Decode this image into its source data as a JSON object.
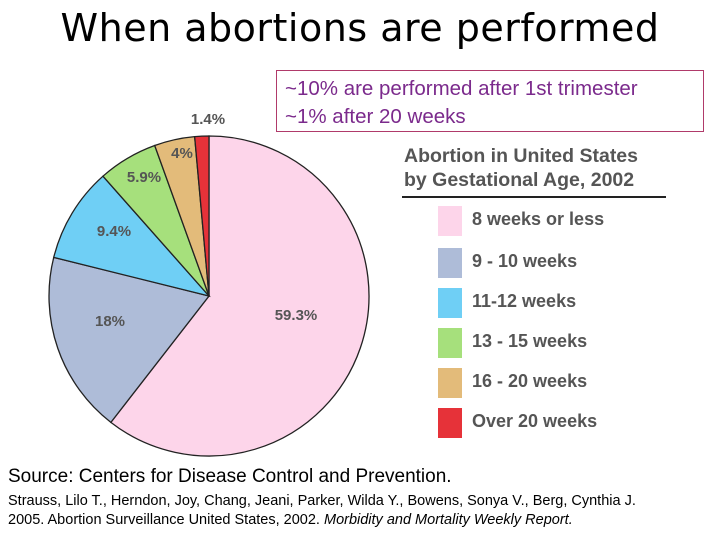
{
  "title": "When abortions are performed",
  "note": {
    "line1": "~10% are performed after 1st trimester",
    "line2": "~1% after 20 weeks"
  },
  "chart_data": {
    "type": "pie",
    "title_line1": "Abortion in United States",
    "title_line2": "by Gestational Age, 2002",
    "slices": [
      {
        "label": "8 weeks or less",
        "value": 59.3,
        "display": "59.3%",
        "color": "#fdd5ea"
      },
      {
        "label": "9 - 10 weeks",
        "value": 18,
        "display": "18%",
        "color": "#aebcd8"
      },
      {
        "label": "11-12 weeks",
        "value": 9.4,
        "display": "9.4%",
        "color": "#6fcff5"
      },
      {
        "label": "13 - 15 weeks",
        "value": 5.9,
        "display": "5.9%",
        "color": "#a6e07c"
      },
      {
        "label": "16 - 20 weeks",
        "value": 4,
        "display": "4%",
        "color": "#e3bb7a"
      },
      {
        "label": "Over 20 weeks",
        "value": 1.4,
        "display": "1.4%",
        "color": "#e63239"
      }
    ]
  },
  "source": "Source: Centers for Disease Control and Prevention.",
  "citation": {
    "line1": "Strauss, Lilo T., Herndon, Joy, Chang, Jeani, Parker, Wilda Y., Bowens, Sonya V., Berg, Cynthia J.",
    "line2_plain": "2005. Abortion Surveillance United States, 2002. ",
    "line2_italic": "Morbidity and Mortality Weekly Report."
  }
}
